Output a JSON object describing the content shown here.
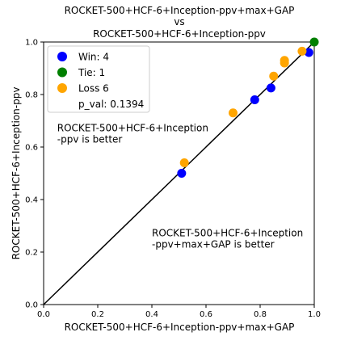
{
  "chart_data": {
    "type": "scatter",
    "title_lines": [
      "ROCKET-500+HCF-6+Inception-ppv+max+GAP",
      "vs",
      "ROCKET-500+HCF-6+Inception-ppv"
    ],
    "xlabel": "ROCKET-500+HCF-6+Inception-ppv+max+GAP",
    "ylabel": "ROCKET-500+HCF-6+Inception-ppv",
    "xlim": [
      0,
      1
    ],
    "ylim": [
      0,
      1
    ],
    "ticks": [
      0.0,
      0.2,
      0.4,
      0.6,
      0.8,
      1.0
    ],
    "tick_labels": [
      "0.0",
      "0.2",
      "0.4",
      "0.6",
      "0.8",
      "1.0"
    ],
    "grid": false,
    "diagonal": true,
    "legend_position": "top-left",
    "legend": [
      {
        "label": "Win: 4",
        "color": "#0000ff"
      },
      {
        "label": "Tie: 1",
        "color": "#008000"
      },
      {
        "label": "Loss 6",
        "color": "#ffa500"
      },
      {
        "label": "p_val: 0.1394",
        "color": null
      }
    ],
    "annotations": [
      {
        "lines": [
          "ROCKET-500+HCF-6+Inception",
          "-ppv is better"
        ],
        "x": 0.05,
        "y": 0.66
      },
      {
        "lines": [
          "ROCKET-500+HCF-6+Inception",
          "-ppv+max+GAP is better"
        ],
        "x": 0.4,
        "y": 0.26
      }
    ],
    "series": [
      {
        "category": "win",
        "color": "#0000ff",
        "points": [
          {
            "x": 0.51,
            "y": 0.5
          },
          {
            "x": 0.78,
            "y": 0.78
          },
          {
            "x": 0.84,
            "y": 0.825
          },
          {
            "x": 0.98,
            "y": 0.96
          }
        ]
      },
      {
        "category": "tie",
        "color": "#008000",
        "points": [
          {
            "x": 1.0,
            "y": 1.0
          }
        ]
      },
      {
        "category": "loss",
        "color": "#ffa500",
        "points": [
          {
            "x": 0.52,
            "y": 0.54
          },
          {
            "x": 0.7,
            "y": 0.73
          },
          {
            "x": 0.85,
            "y": 0.87
          },
          {
            "x": 0.89,
            "y": 0.92
          },
          {
            "x": 0.89,
            "y": 0.93
          },
          {
            "x": 0.955,
            "y": 0.965
          }
        ]
      }
    ]
  }
}
